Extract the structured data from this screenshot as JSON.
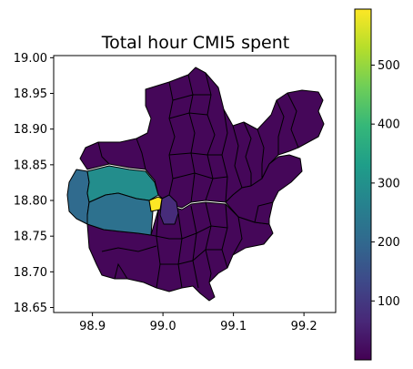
{
  "chart_data": {
    "type": "choropleth",
    "title": "Total hour CMI5 spent",
    "xlabel": "",
    "ylabel": "",
    "xlim": [
      98.845,
      99.245
    ],
    "ylim": [
      18.643,
      19.003
    ],
    "x_ticks": [
      98.9,
      99.0,
      99.1,
      99.2
    ],
    "y_ticks": [
      18.65,
      18.7,
      18.75,
      18.8,
      18.85,
      18.9,
      18.95,
      19.0
    ],
    "x_tick_labels": [
      "98.9",
      "99.0",
      "99.1",
      "99.2"
    ],
    "y_tick_labels": [
      "18.65",
      "18.70",
      "18.75",
      "18.80",
      "18.85",
      "18.90",
      "18.95",
      "19.00"
    ],
    "colorbar": {
      "colormap": "viridis",
      "vmin": 0,
      "vmax": 595,
      "ticks": [
        100,
        200,
        300,
        400,
        500
      ],
      "tick_labels": [
        "100",
        "200",
        "300",
        "400",
        "500"
      ]
    },
    "regions": [
      {
        "name": "yellow-central",
        "value": 595
      },
      {
        "name": "teal-west",
        "value": 290
      },
      {
        "name": "blue-southwest",
        "value": 220
      },
      {
        "name": "blue-far-west",
        "value": 205
      },
      {
        "name": "indigo-central-east",
        "value": 75
      },
      {
        "name": "remaining-districts",
        "value": 10
      }
    ]
  },
  "colors": {
    "viridis_stops": [
      "#440154",
      "#482878",
      "#3e4989",
      "#31688e",
      "#26828e",
      "#1f9e89",
      "#35b779",
      "#6ece58",
      "#b5de2b",
      "#fde725"
    ]
  }
}
